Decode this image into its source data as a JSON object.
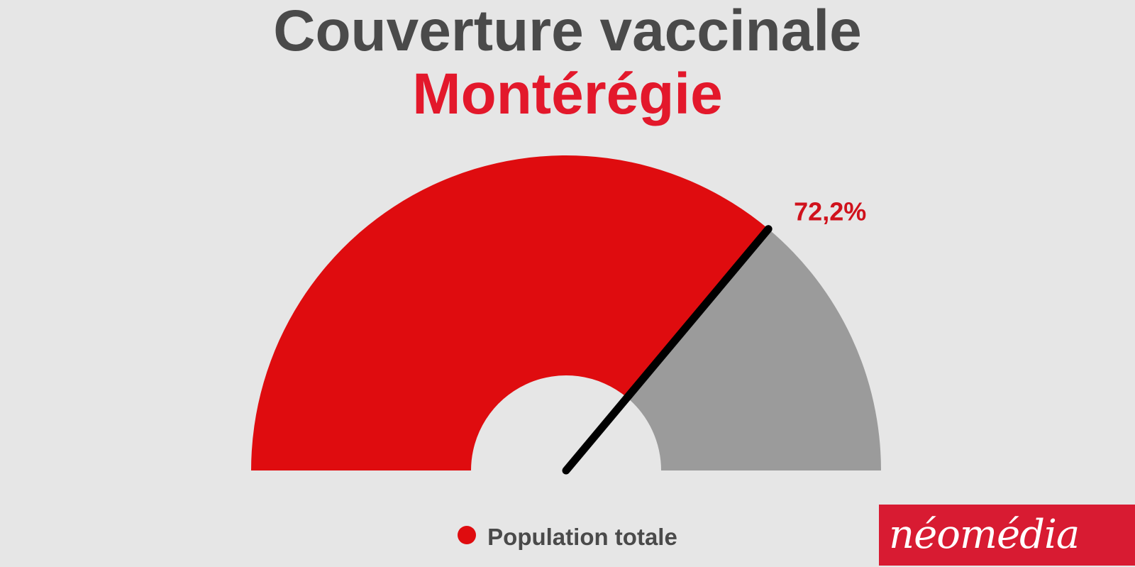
{
  "chart_data": {
    "type": "gauge",
    "title": "Couverture vaccinale",
    "subtitle": "Montérégie",
    "min": 0,
    "max": 100,
    "value": 72.2,
    "value_label": "72,2%",
    "series": [
      {
        "name": "Population totale",
        "value": 72.2
      }
    ],
    "legend_position": "bottom",
    "colors": {
      "filled": "#df0c0f",
      "remaining": "#9b9b9b",
      "needle": "#000000",
      "value_label": "#d0121c",
      "title": "#4a4a4a",
      "subtitle": "#e3182b",
      "legend_swatch": "#df0c0f"
    }
  },
  "logo": {
    "text": "néomédia",
    "background": "#d81b32",
    "text_color": "#ffffff"
  }
}
